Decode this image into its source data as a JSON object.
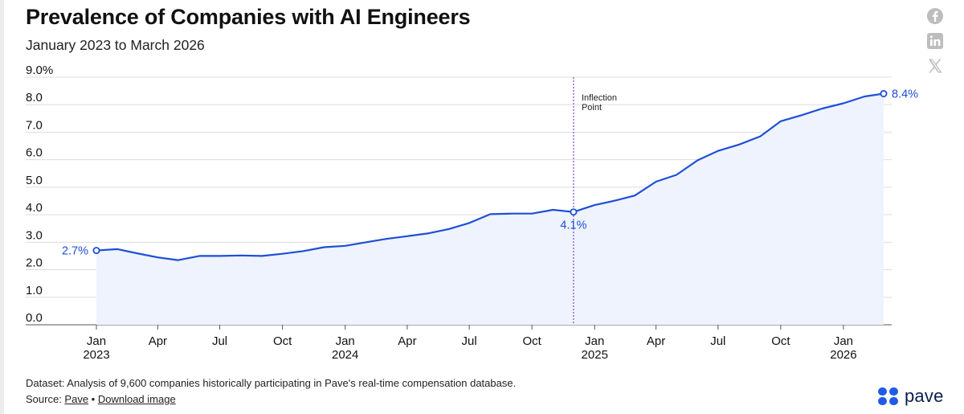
{
  "header": {
    "title": "Prevalence of Companies with AI Engineers",
    "subtitle": "January 2023 to March 2026"
  },
  "share_icons": [
    "facebook-icon",
    "linkedin-icon",
    "x-icon"
  ],
  "colors": {
    "line": "#1f4fd6",
    "area": "#eef3fd",
    "grid": "#dddddd",
    "inflection": "#7b55d6"
  },
  "chart_data": {
    "type": "line",
    "title": "Prevalence of Companies with AI Engineers",
    "subtitle": "January 2023 to March 2026",
    "ylim": [
      0,
      9
    ],
    "y_ticks": [
      "0.0",
      "1.0",
      "2.0",
      "3.0",
      "4.0",
      "5.0",
      "6.0",
      "7.0",
      "8.0",
      "9.0%"
    ],
    "x_ticks": [
      {
        "label": "Jan",
        "year": "2023",
        "date": "2023-01"
      },
      {
        "label": "Apr",
        "year": "",
        "date": "2023-04"
      },
      {
        "label": "Jul",
        "year": "",
        "date": "2023-07"
      },
      {
        "label": "Oct",
        "year": "",
        "date": "2023-10"
      },
      {
        "label": "Jan",
        "year": "2024",
        "date": "2024-01"
      },
      {
        "label": "Apr",
        "year": "",
        "date": "2024-04"
      },
      {
        "label": "Jul",
        "year": "",
        "date": "2024-07"
      },
      {
        "label": "Oct",
        "year": "",
        "date": "2024-10"
      },
      {
        "label": "Jan",
        "year": "2025",
        "date": "2025-01"
      },
      {
        "label": "Apr",
        "year": "",
        "date": "2025-04"
      },
      {
        "label": "Jul",
        "year": "",
        "date": "2025-07"
      },
      {
        "label": "Oct",
        "year": "",
        "date": "2025-10"
      },
      {
        "label": "Jan",
        "year": "2026",
        "date": "2026-01"
      }
    ],
    "grid": true,
    "series": [
      {
        "values": [
          {
            "x": "2023-01",
            "y": 2.7
          },
          {
            "x": "2023-02",
            "y": 2.75
          },
          {
            "x": "2023-03",
            "y": 2.6
          },
          {
            "x": "2023-04",
            "y": 2.45
          },
          {
            "x": "2023-05",
            "y": 2.35
          },
          {
            "x": "2023-06",
            "y": 2.5
          },
          {
            "x": "2023-07",
            "y": 2.5
          },
          {
            "x": "2023-08",
            "y": 2.52
          },
          {
            "x": "2023-09",
            "y": 2.5
          },
          {
            "x": "2023-10",
            "y": 2.58
          },
          {
            "x": "2023-11",
            "y": 2.68
          },
          {
            "x": "2023-12",
            "y": 2.82
          },
          {
            "x": "2024-01",
            "y": 2.87
          },
          {
            "x": "2024-02",
            "y": 3.0
          },
          {
            "x": "2024-03",
            "y": 3.12
          },
          {
            "x": "2024-04",
            "y": 3.22
          },
          {
            "x": "2024-05",
            "y": 3.32
          },
          {
            "x": "2024-06",
            "y": 3.48
          },
          {
            "x": "2024-07",
            "y": 3.7
          },
          {
            "x": "2024-08",
            "y": 4.02
          },
          {
            "x": "2024-09",
            "y": 4.04
          },
          {
            "x": "2024-10",
            "y": 4.04
          },
          {
            "x": "2024-11",
            "y": 4.18
          },
          {
            "x": "2024-12",
            "y": 4.1
          },
          {
            "x": "2025-01",
            "y": 4.35
          },
          {
            "x": "2025-02",
            "y": 4.52
          },
          {
            "x": "2025-03",
            "y": 4.7
          },
          {
            "x": "2025-04",
            "y": 5.2
          },
          {
            "x": "2025-05",
            "y": 5.45
          },
          {
            "x": "2025-06",
            "y": 5.98
          },
          {
            "x": "2025-07",
            "y": 6.32
          },
          {
            "x": "2025-08",
            "y": 6.55
          },
          {
            "x": "2025-09",
            "y": 6.85
          },
          {
            "x": "2025-10",
            "y": 7.4
          },
          {
            "x": "2025-11",
            "y": 7.62
          },
          {
            "x": "2025-12",
            "y": 7.86
          },
          {
            "x": "2026-01",
            "y": 8.05
          },
          {
            "x": "2026-02",
            "y": 8.3
          },
          {
            "x": "2026-03",
            "y": 8.4
          }
        ]
      }
    ],
    "annotations": [
      {
        "date": "2023-01",
        "text": "2.7%",
        "marker": true
      },
      {
        "date": "2024-12",
        "text": "4.1%",
        "marker": true
      },
      {
        "date": "2026-03",
        "text": "8.4%",
        "marker": true
      }
    ],
    "inflection": {
      "date": "2024-12",
      "label_line1": "Inflection",
      "label_line2": "Point"
    }
  },
  "footer": {
    "dataset": "Dataset: Analysis of 9,600 companies historically participating in Pave's real-time compensation database.",
    "source_prefix": "Source: ",
    "source_link": "Pave",
    "separator": " • ",
    "download_link": "Download image",
    "logo_text": "pave"
  }
}
